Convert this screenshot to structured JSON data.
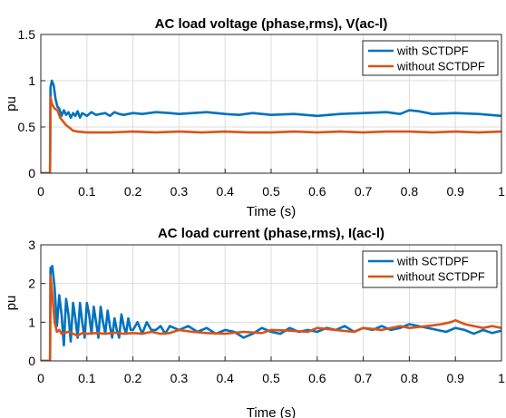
{
  "chart_data": [
    {
      "type": "line",
      "title": "AC load voltage (phase,rms), V(ac-l)",
      "xlabel": "Time (s)",
      "ylabel": "pu",
      "xlim": [
        0,
        1
      ],
      "ylim": [
        0,
        1.5
      ],
      "xticks": [
        0,
        0.1,
        0.2,
        0.3,
        0.4,
        0.5,
        0.6,
        0.7,
        0.8,
        0.9,
        1
      ],
      "xtick_labels": [
        "0",
        "0.1",
        "0.2",
        "0.3",
        "0.4",
        "0.5",
        "0.6",
        "0.7",
        "0.8",
        "0.9",
        "1"
      ],
      "yticks": [
        0,
        0.5,
        1,
        1.5
      ],
      "ytick_labels": [
        "0",
        "0.5",
        "1",
        "1.5"
      ],
      "grid": true,
      "legend_position": "top-right",
      "series": [
        {
          "name": "with SCTDPF",
          "color": "#0072BD",
          "x": [
            0,
            0.02,
            0.021,
            0.024,
            0.028,
            0.032,
            0.036,
            0.04,
            0.045,
            0.05,
            0.055,
            0.06,
            0.065,
            0.07,
            0.075,
            0.08,
            0.085,
            0.09,
            0.1,
            0.11,
            0.12,
            0.13,
            0.14,
            0.15,
            0.16,
            0.17,
            0.18,
            0.2,
            0.22,
            0.25,
            0.28,
            0.3,
            0.33,
            0.36,
            0.4,
            0.43,
            0.46,
            0.5,
            0.55,
            0.6,
            0.65,
            0.7,
            0.75,
            0.78,
            0.8,
            0.82,
            0.85,
            0.9,
            0.95,
            1.0
          ],
          "y": [
            0,
            0,
            0.93,
            1.0,
            0.95,
            0.8,
            0.72,
            0.7,
            0.62,
            0.68,
            0.63,
            0.66,
            0.6,
            0.65,
            0.62,
            0.67,
            0.6,
            0.65,
            0.62,
            0.66,
            0.63,
            0.64,
            0.65,
            0.62,
            0.66,
            0.64,
            0.63,
            0.65,
            0.64,
            0.66,
            0.65,
            0.64,
            0.65,
            0.66,
            0.64,
            0.63,
            0.65,
            0.63,
            0.64,
            0.62,
            0.64,
            0.65,
            0.66,
            0.64,
            0.68,
            0.67,
            0.64,
            0.65,
            0.64,
            0.62
          ]
        },
        {
          "name": "without SCTDPF",
          "color": "#D95319",
          "x": [
            0,
            0.02,
            0.021,
            0.024,
            0.03,
            0.036,
            0.042,
            0.05,
            0.055,
            0.06,
            0.065,
            0.07,
            0.08,
            0.1,
            0.15,
            0.2,
            0.25,
            0.3,
            0.35,
            0.4,
            0.45,
            0.5,
            0.55,
            0.6,
            0.65,
            0.7,
            0.75,
            0.8,
            0.85,
            0.9,
            0.95,
            1.0
          ],
          "y": [
            0,
            0,
            0.82,
            0.75,
            0.7,
            0.68,
            0.6,
            0.55,
            0.52,
            0.5,
            0.48,
            0.46,
            0.45,
            0.44,
            0.44,
            0.45,
            0.44,
            0.45,
            0.44,
            0.45,
            0.44,
            0.44,
            0.45,
            0.44,
            0.45,
            0.44,
            0.45,
            0.45,
            0.44,
            0.45,
            0.44,
            0.45
          ]
        }
      ]
    },
    {
      "type": "line",
      "title": "AC load current (phase,rms), I(ac-l)",
      "xlabel": "Time (s)",
      "ylabel": "pu",
      "xlim": [
        0,
        1
      ],
      "ylim": [
        0,
        3
      ],
      "xticks": [
        0,
        0.1,
        0.2,
        0.3,
        0.4,
        0.5,
        0.6,
        0.7,
        0.8,
        0.9,
        1
      ],
      "xtick_labels": [
        "0",
        "0.1",
        "0.2",
        "0.3",
        "0.4",
        "0.5",
        "0.6",
        "0.7",
        "0.8",
        "0.9",
        "1"
      ],
      "yticks": [
        0,
        1,
        2,
        3
      ],
      "ytick_labels": [
        "0",
        "1",
        "2",
        "3"
      ],
      "grid": true,
      "legend_position": "top-right",
      "series": [
        {
          "name": "with SCTDPF",
          "color": "#0072BD",
          "x": [
            0,
            0.02,
            0.021,
            0.025,
            0.03,
            0.035,
            0.04,
            0.045,
            0.05,
            0.055,
            0.06,
            0.065,
            0.07,
            0.075,
            0.08,
            0.085,
            0.09,
            0.095,
            0.1,
            0.105,
            0.11,
            0.115,
            0.12,
            0.125,
            0.13,
            0.135,
            0.14,
            0.145,
            0.15,
            0.155,
            0.16,
            0.165,
            0.17,
            0.175,
            0.18,
            0.185,
            0.19,
            0.195,
            0.2,
            0.21,
            0.22,
            0.23,
            0.24,
            0.25,
            0.26,
            0.27,
            0.28,
            0.3,
            0.32,
            0.34,
            0.36,
            0.38,
            0.4,
            0.42,
            0.44,
            0.46,
            0.48,
            0.5,
            0.52,
            0.54,
            0.56,
            0.58,
            0.6,
            0.62,
            0.64,
            0.66,
            0.68,
            0.7,
            0.72,
            0.74,
            0.76,
            0.78,
            0.8,
            0.82,
            0.84,
            0.86,
            0.88,
            0.9,
            0.92,
            0.94,
            0.96,
            0.98,
            1.0
          ],
          "y": [
            0,
            0,
            2.4,
            2.45,
            1.9,
            0.9,
            1.7,
            1.2,
            0.4,
            1.6,
            1.2,
            0.5,
            1.5,
            1.1,
            0.6,
            1.5,
            1.0,
            0.6,
            1.5,
            1.2,
            0.7,
            1.4,
            1.0,
            0.6,
            1.4,
            1.0,
            0.7,
            1.3,
            0.9,
            0.6,
            1.1,
            0.8,
            0.6,
            1.2,
            0.9,
            0.7,
            1.1,
            0.8,
            0.8,
            1.0,
            0.7,
            1.0,
            0.8,
            0.8,
            0.9,
            0.7,
            0.9,
            0.8,
            0.9,
            0.75,
            0.85,
            0.7,
            0.8,
            0.75,
            0.6,
            0.7,
            0.85,
            0.75,
            0.7,
            0.85,
            0.75,
            0.8,
            0.75,
            0.85,
            0.8,
            0.9,
            0.75,
            0.85,
            0.8,
            0.9,
            0.8,
            0.85,
            0.95,
            0.9,
            0.85,
            0.8,
            0.75,
            0.85,
            0.8,
            0.7,
            0.8,
            0.72,
            0.78
          ]
        },
        {
          "name": "without SCTDPF",
          "color": "#D95319",
          "x": [
            0,
            0.02,
            0.021,
            0.025,
            0.03,
            0.035,
            0.04,
            0.045,
            0.05,
            0.06,
            0.07,
            0.08,
            0.09,
            0.1,
            0.12,
            0.14,
            0.16,
            0.18,
            0.2,
            0.22,
            0.24,
            0.26,
            0.28,
            0.3,
            0.33,
            0.36,
            0.4,
            0.44,
            0.48,
            0.5,
            0.54,
            0.58,
            0.6,
            0.64,
            0.68,
            0.7,
            0.74,
            0.78,
            0.8,
            0.84,
            0.87,
            0.89,
            0.9,
            0.92,
            0.94,
            0.96,
            0.98,
            1.0
          ],
          "y": [
            0,
            0,
            2.2,
            1.7,
            1.0,
            0.75,
            0.8,
            0.7,
            0.72,
            0.75,
            0.7,
            0.65,
            0.72,
            0.7,
            0.72,
            0.7,
            0.73,
            0.7,
            0.72,
            0.7,
            0.75,
            0.7,
            0.72,
            0.8,
            0.75,
            0.72,
            0.7,
            0.75,
            0.72,
            0.8,
            0.78,
            0.75,
            0.85,
            0.8,
            0.75,
            0.85,
            0.8,
            0.9,
            0.85,
            0.9,
            0.95,
            1.0,
            1.05,
            0.95,
            0.9,
            0.85,
            0.9,
            0.85
          ]
        }
      ]
    }
  ]
}
